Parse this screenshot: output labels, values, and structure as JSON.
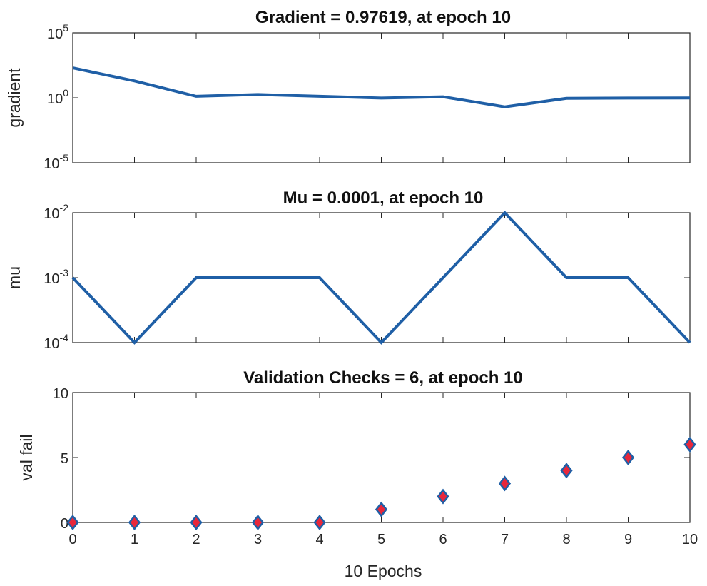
{
  "chart_data": [
    {
      "type": "line",
      "title": "Gradient = 0.97619, at epoch 10",
      "ylabel": "gradient",
      "xlabel": "",
      "yscale": "log",
      "ylim_exp": [
        -5,
        5
      ],
      "yticks": [
        {
          "base": "10",
          "exp": "5",
          "e": 5
        },
        {
          "base": "10",
          "exp": "0",
          "e": 0
        },
        {
          "base": "10",
          "exp": "-5",
          "e": -5
        }
      ],
      "xlim": [
        0,
        10
      ],
      "x": [
        0,
        1,
        2,
        3,
        4,
        5,
        6,
        7,
        8,
        9,
        10
      ],
      "y": [
        200,
        20,
        1.3,
        1.8,
        1.3,
        0.95,
        1.2,
        0.2,
        0.9,
        0.95,
        0.97619
      ],
      "series_color": "#1f5fa6"
    },
    {
      "type": "line",
      "title": "Mu = 0.0001, at epoch 10",
      "ylabel": "mu",
      "xlabel": "",
      "yscale": "log",
      "ylim_exp": [
        -4,
        -2
      ],
      "yticks": [
        {
          "base": "10",
          "exp": "-2",
          "e": -2
        },
        {
          "base": "10",
          "exp": "-3",
          "e": -3
        },
        {
          "base": "10",
          "exp": "-4",
          "e": -4
        }
      ],
      "xlim": [
        0,
        10
      ],
      "x": [
        0,
        1,
        2,
        3,
        4,
        5,
        6,
        7,
        8,
        9,
        10
      ],
      "y": [
        0.001,
        0.0001,
        0.001,
        0.001,
        0.001,
        0.0001,
        0.001,
        0.01,
        0.001,
        0.001,
        0.0001
      ],
      "series_color": "#1f5fa6"
    },
    {
      "type": "scatter",
      "title": "Validation Checks = 6, at epoch 10",
      "ylabel": "val fail",
      "xlabel": "10 Epochs",
      "yscale": "linear",
      "ylim": [
        0,
        10
      ],
      "yticks": [
        {
          "label": "10",
          "v": 10
        },
        {
          "label": "5",
          "v": 5
        },
        {
          "label": "0",
          "v": 0
        }
      ],
      "xlim": [
        0,
        10
      ],
      "xticks": [
        "0",
        "1",
        "2",
        "3",
        "4",
        "5",
        "6",
        "7",
        "8",
        "9",
        "10"
      ],
      "x": [
        0,
        1,
        2,
        3,
        4,
        5,
        6,
        7,
        8,
        9,
        10
      ],
      "y": [
        0,
        0,
        0,
        0,
        0,
        1,
        2,
        3,
        4,
        5,
        6
      ],
      "marker": "diamond",
      "marker_face": "#e8273b",
      "marker_edge": "#1f5fa6"
    }
  ]
}
